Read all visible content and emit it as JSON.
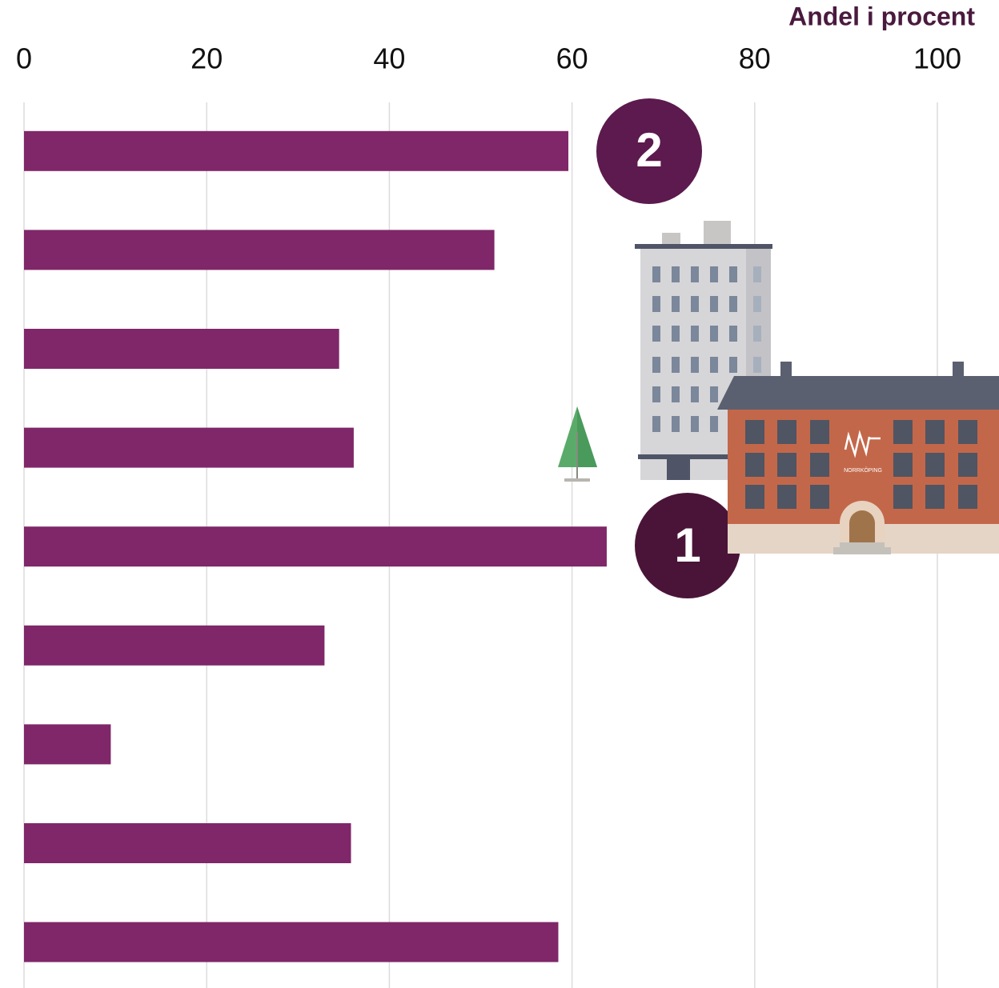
{
  "chart_data": {
    "type": "barh",
    "axis_title": "Andel i procent",
    "categories": [
      null,
      null,
      null,
      null,
      null,
      null,
      null,
      null,
      null
    ],
    "values": [
      59.6,
      51.5,
      34.5,
      36.1,
      63.8,
      32.9,
      9.5,
      35.8,
      58.5
    ],
    "color": "#7f2769",
    "xlim": [
      0,
      100
    ],
    "xticks": [
      0,
      20,
      40,
      60,
      80,
      100
    ],
    "grid": true,
    "annotations": [
      "2",
      "1"
    ],
    "logo_text": "NORRKÖPING"
  }
}
